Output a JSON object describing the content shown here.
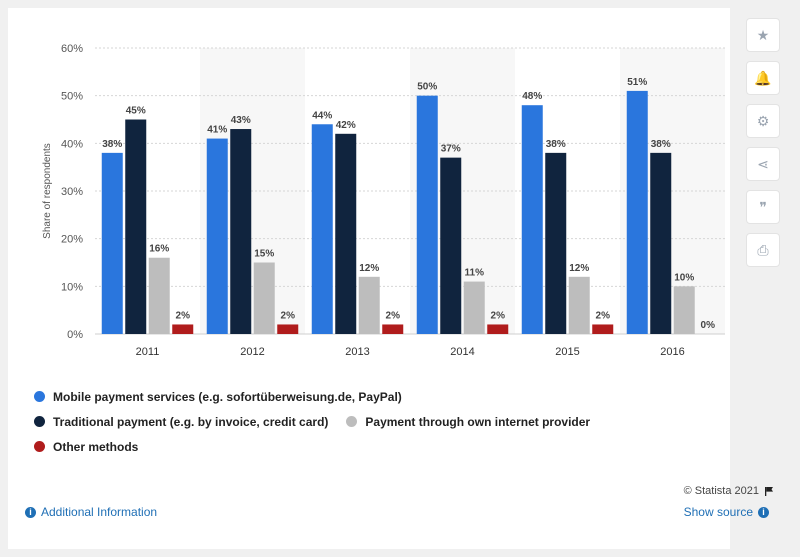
{
  "chart_data": {
    "type": "bar",
    "categories": [
      "2011",
      "2012",
      "2013",
      "2014",
      "2015",
      "2016"
    ],
    "series": [
      {
        "name": "Mobile payment services (e.g. sofortüberweisung.de, PayPal)",
        "color": "#2a76dd",
        "values": [
          38,
          41,
          44,
          50,
          48,
          51
        ]
      },
      {
        "name": "Traditional payment (e.g. by invoice, credit card)",
        "color": "#10243e",
        "values": [
          45,
          43,
          42,
          37,
          38,
          38
        ]
      },
      {
        "name": "Payment through own internet provider",
        "color": "#bdbdbd",
        "values": [
          16,
          15,
          12,
          11,
          12,
          10
        ]
      },
      {
        "name": "Other methods",
        "color": "#b01c1c",
        "values": [
          2,
          2,
          2,
          2,
          2,
          0
        ]
      }
    ],
    "ylabel": "Share of respondents",
    "ylim": [
      0,
      60
    ],
    "yticks": [
      "0%",
      "10%",
      "20%",
      "30%",
      "40%",
      "50%",
      "60%"
    ],
    "value_suffix": "%",
    "grid": true,
    "legend_position": "bottom-left"
  },
  "legend": {
    "row1": [
      "Mobile payment services (e.g. sofortüberweisung.de, PayPal)"
    ],
    "row2": [
      "Traditional payment (e.g. by invoice, credit card)",
      "Payment through own internet provider"
    ],
    "row3": [
      "Other methods"
    ]
  },
  "footer": {
    "credit": "© Statista 2021",
    "additional_info": "Additional Information",
    "show_source": "Show source"
  },
  "toolbar": {
    "icons": [
      "star-icon",
      "bell-icon",
      "gear-icon",
      "share-icon",
      "quote-icon",
      "print-icon"
    ],
    "glyphs": [
      "★",
      "🔔",
      "⚙",
      "⋖",
      "❞",
      "⎙"
    ]
  }
}
